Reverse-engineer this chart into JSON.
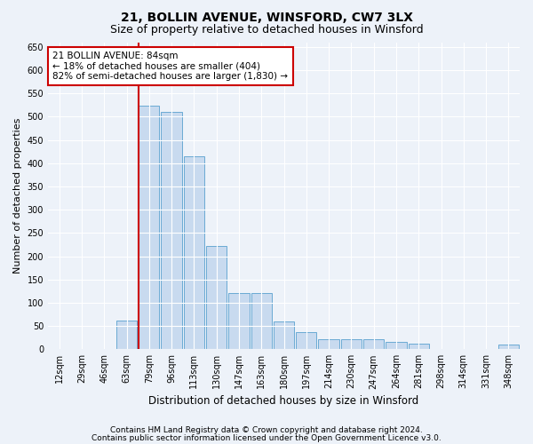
{
  "title1": "21, BOLLIN AVENUE, WINSFORD, CW7 3LX",
  "title2": "Size of property relative to detached houses in Winsford",
  "xlabel": "Distribution of detached houses by size in Winsford",
  "ylabel": "Number of detached properties",
  "categories": [
    "12sqm",
    "29sqm",
    "46sqm",
    "63sqm",
    "79sqm",
    "96sqm",
    "113sqm",
    "130sqm",
    "147sqm",
    "163sqm",
    "180sqm",
    "197sqm",
    "214sqm",
    "230sqm",
    "247sqm",
    "264sqm",
    "281sqm",
    "298sqm",
    "314sqm",
    "331sqm",
    "348sqm"
  ],
  "values": [
    0,
    0,
    0,
    62,
    523,
    510,
    415,
    222,
    120,
    120,
    60,
    37,
    22,
    22,
    21,
    16,
    12,
    0,
    0,
    0,
    10
  ],
  "bar_color": "#c8daef",
  "bar_edge_color": "#6aaad4",
  "redline_index": 4,
  "annotation_line1": "21 BOLLIN AVENUE: 84sqm",
  "annotation_line2": "← 18% of detached houses are smaller (404)",
  "annotation_line3": "82% of semi-detached houses are larger (1,830) →",
  "annotation_box_color": "#ffffff",
  "annotation_box_edge_color": "#cc0000",
  "ylim": [
    0,
    660
  ],
  "yticks": [
    0,
    50,
    100,
    150,
    200,
    250,
    300,
    350,
    400,
    450,
    500,
    550,
    600,
    650
  ],
  "footer1": "Contains HM Land Registry data © Crown copyright and database right 2024.",
  "footer2": "Contains public sector information licensed under the Open Government Licence v3.0.",
  "bg_color": "#edf2f9",
  "title1_fontsize": 10,
  "title2_fontsize": 9,
  "tick_fontsize": 7,
  "ylabel_fontsize": 8,
  "xlabel_fontsize": 8.5,
  "annotation_fontsize": 7.5,
  "footer_fontsize": 6.5
}
